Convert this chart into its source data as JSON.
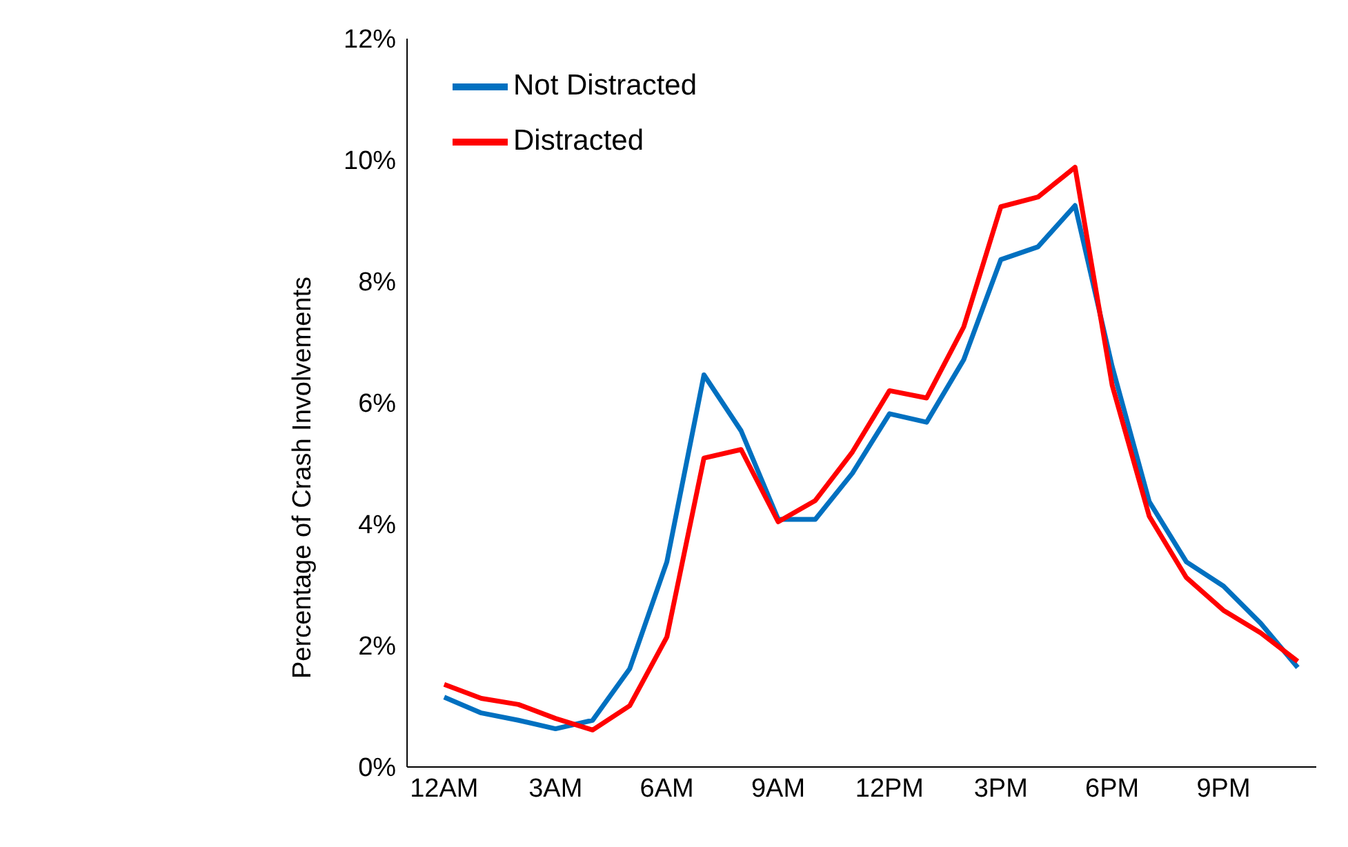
{
  "chart_data": {
    "type": "line",
    "ylabel": "Percentage of Crash Involvements",
    "categories": [
      "12AM",
      null,
      null,
      "3AM",
      null,
      null,
      "6AM",
      null,
      null,
      "9AM",
      null,
      null,
      "12PM",
      null,
      null,
      "3PM",
      null,
      null,
      "6PM",
      null,
      null,
      "9PM",
      null,
      null
    ],
    "series": [
      {
        "name": "Not Distracted",
        "color": "#0070c0",
        "values": [
          1.15,
          0.89,
          0.77,
          0.63,
          0.77,
          1.62,
          3.38,
          6.46,
          5.54,
          4.08,
          4.08,
          4.84,
          5.82,
          5.68,
          6.71,
          8.36,
          8.57,
          9.25,
          6.6,
          4.37,
          3.38,
          2.98,
          2.37,
          1.64
        ]
      },
      {
        "name": "Distracted",
        "color": "#ff0000",
        "values": [
          1.36,
          1.13,
          1.03,
          0.8,
          0.61,
          1.01,
          2.14,
          5.09,
          5.23,
          4.04,
          4.39,
          5.19,
          6.2,
          6.08,
          7.25,
          9.23,
          9.39,
          9.88,
          6.29,
          4.13,
          3.12,
          2.58,
          2.21,
          1.74
        ]
      }
    ],
    "ylim": [
      0,
      12
    ],
    "yticks": [
      {
        "value": 0,
        "label": "0%"
      },
      {
        "value": 2,
        "label": "2%"
      },
      {
        "value": 4,
        "label": "4%"
      },
      {
        "value": 6,
        "label": "6%"
      },
      {
        "value": 8,
        "label": "8%"
      },
      {
        "value": 10,
        "label": "10%"
      },
      {
        "value": 12,
        "label": "12%"
      }
    ],
    "grid": false,
    "legend": "top left",
    "marker": "none",
    "line_style": "solid"
  }
}
